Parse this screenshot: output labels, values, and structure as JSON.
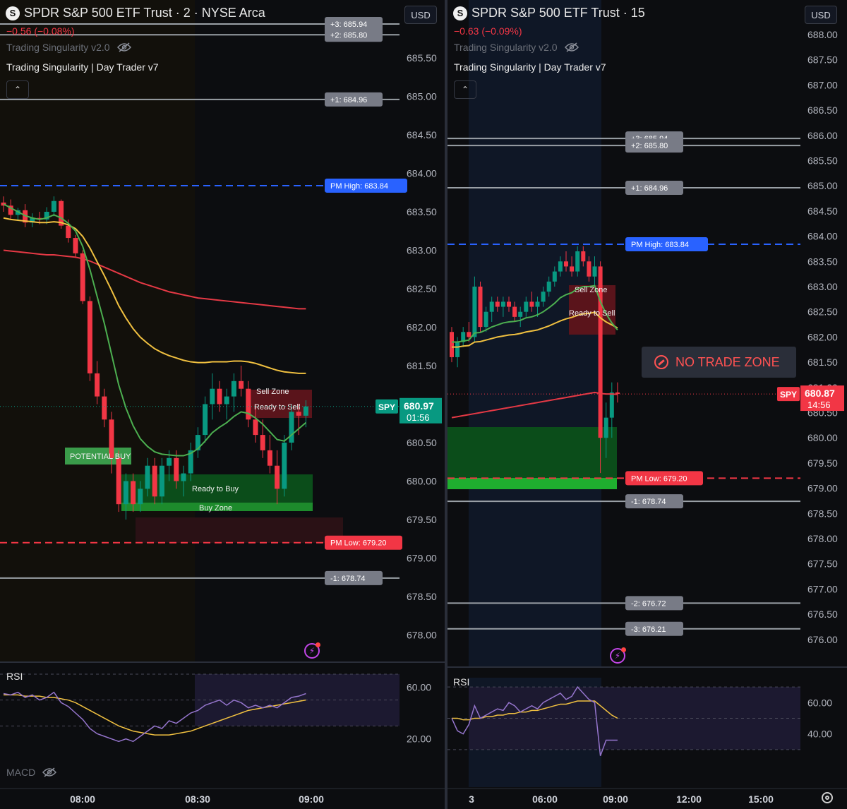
{
  "left": {
    "logo": "S",
    "title": "SPDR S&P 500 ETF Trust · 2 · NYSE Arca",
    "change": "−0.56 (−0.08%)",
    "indicator_hidden": "Trading Singularity v2.0",
    "indicator_active": "Trading Singularity | Day Trader v7",
    "currency": "USD",
    "rsi_label": "RSI",
    "macd_label": "MACD"
  },
  "right": {
    "logo": "S",
    "title": "SPDR S&P 500 ETF Trust · 15",
    "change": "−0.63 (−0.09%)",
    "indicator_hidden": "Trading Singularity v2.0",
    "indicator_active": "Trading Singularity | Day Trader v7",
    "currency": "USD",
    "rsi_label": "RSI",
    "no_trade_label": "NO TRADE ZONE"
  },
  "colors": {
    "up": "#089981",
    "down": "#f23645",
    "ema_fast": "#4caf50",
    "ema_mid": "#f0c040",
    "ema_slow": "#e53945",
    "pm_high": "#2962ff",
    "pm_low": "#f23645",
    "rsi": "#9575cd",
    "rsi_ma": "#f0c040"
  },
  "chart_data": [
    {
      "type": "candlestick",
      "symbol": "SPY",
      "interval": "2",
      "last_price": "680.97",
      "countdown": "01:56",
      "y_ticks": [
        "685.50",
        "685.00",
        "684.50",
        "684.00",
        "683.50",
        "683.00",
        "682.50",
        "682.00",
        "681.50",
        "681.00",
        "680.50",
        "680.00",
        "679.50",
        "679.00",
        "678.50",
        "678.00"
      ],
      "x_ticks": [
        "08:00",
        "08:30",
        "09:00"
      ],
      "levels": [
        {
          "label": "+3: 685.94",
          "value": 685.94
        },
        {
          "label": "+2: 685.80",
          "value": 685.8
        },
        {
          "label": "+1: 684.96",
          "value": 684.96
        },
        {
          "label": "PM High: 683.84",
          "value": 683.84
        },
        {
          "label": "PM Low: 679.20",
          "value": 679.2
        },
        {
          "label": "-1: 678.74",
          "value": 678.74
        }
      ],
      "zone_labels": [
        "Sell Zone",
        "Ready to Sell",
        "Ready to Buy",
        "Buy Zone",
        "POTENTIAL BUY"
      ],
      "candles": [
        [
          683.62,
          683.7,
          683.5,
          683.58
        ],
        [
          683.58,
          683.66,
          683.4,
          683.46
        ],
        [
          683.46,
          683.55,
          683.38,
          683.52
        ],
        [
          683.52,
          683.6,
          683.3,
          683.36
        ],
        [
          683.36,
          683.48,
          683.3,
          683.42
        ],
        [
          683.42,
          683.5,
          683.34,
          683.4
        ],
        [
          683.4,
          683.56,
          683.34,
          683.5
        ],
        [
          683.5,
          683.7,
          683.44,
          683.64
        ],
        [
          683.64,
          683.66,
          683.28,
          683.32
        ],
        [
          683.32,
          683.4,
          683.1,
          683.16
        ],
        [
          683.16,
          683.2,
          682.9,
          682.96
        ],
        [
          682.96,
          683.0,
          682.3,
          682.34
        ],
        [
          682.34,
          682.4,
          681.3,
          681.4
        ],
        [
          681.4,
          681.56,
          681.0,
          681.1
        ],
        [
          681.1,
          681.2,
          680.7,
          680.8
        ],
        [
          680.8,
          680.9,
          680.1,
          680.3
        ],
        [
          680.3,
          680.4,
          679.6,
          679.7
        ],
        [
          679.7,
          680.1,
          679.5,
          680.0
        ],
        [
          680.0,
          680.1,
          679.6,
          679.7
        ],
        [
          679.7,
          680.0,
          679.6,
          679.9
        ],
        [
          679.9,
          680.3,
          679.8,
          680.2
        ],
        [
          680.2,
          680.3,
          679.7,
          679.8
        ],
        [
          679.8,
          680.3,
          679.7,
          680.2
        ],
        [
          680.2,
          680.4,
          680.0,
          680.3
        ],
        [
          680.3,
          680.4,
          679.9,
          680.0
        ],
        [
          680.0,
          680.2,
          679.8,
          680.1
        ],
        [
          680.1,
          680.5,
          680.0,
          680.4
        ],
        [
          680.4,
          680.7,
          680.3,
          680.6
        ],
        [
          680.6,
          681.1,
          680.5,
          681.0
        ],
        [
          681.0,
          681.4,
          680.8,
          681.2
        ],
        [
          681.2,
          681.3,
          680.9,
          681.0
        ],
        [
          681.0,
          681.2,
          680.8,
          681.1
        ],
        [
          681.1,
          681.4,
          680.9,
          681.3
        ],
        [
          681.3,
          681.5,
          681.1,
          681.2
        ],
        [
          681.2,
          681.3,
          680.7,
          680.8
        ],
        [
          680.8,
          681.0,
          680.5,
          680.6
        ],
        [
          680.6,
          680.8,
          680.3,
          680.4
        ],
        [
          680.4,
          680.6,
          680.1,
          680.2
        ],
        [
          680.2,
          680.4,
          679.7,
          679.9
        ],
        [
          679.9,
          680.6,
          679.8,
          680.5
        ],
        [
          680.5,
          681.0,
          680.4,
          680.9
        ],
        [
          680.9,
          681.0,
          680.6,
          680.85
        ],
        [
          680.85,
          681.05,
          680.7,
          680.97
        ]
      ],
      "ema_fast": [
        683.6,
        683.55,
        683.5,
        683.45,
        683.42,
        683.4,
        683.42,
        683.46,
        683.42,
        683.35,
        683.25,
        683.05,
        682.75,
        682.4,
        682.05,
        681.65,
        681.25,
        680.95,
        680.72,
        680.55,
        680.45,
        680.38,
        680.35,
        680.34,
        680.33,
        680.33,
        680.36,
        680.42,
        680.52,
        680.63,
        680.7,
        680.76,
        680.84,
        680.9,
        680.88,
        680.82,
        680.74,
        680.64,
        680.54,
        680.52,
        680.6,
        680.68,
        680.76
      ],
      "ema_mid": [
        683.42,
        683.4,
        683.39,
        683.38,
        683.37,
        683.36,
        683.36,
        683.37,
        683.36,
        683.33,
        683.28,
        683.18,
        683.03,
        682.85,
        682.67,
        682.48,
        682.28,
        682.12,
        681.98,
        681.87,
        681.79,
        681.72,
        681.67,
        681.63,
        681.6,
        681.57,
        681.55,
        681.54,
        681.54,
        681.55,
        681.55,
        681.55,
        681.56,
        681.56,
        681.55,
        681.53,
        681.5,
        681.47,
        681.44,
        681.42,
        681.41,
        681.4,
        681.4
      ],
      "ema_slow": [
        683.0,
        682.99,
        682.98,
        682.97,
        682.96,
        682.95,
        682.94,
        682.94,
        682.93,
        682.92,
        682.91,
        682.89,
        682.86,
        682.82,
        682.78,
        682.74,
        682.7,
        682.66,
        682.62,
        682.58,
        682.55,
        682.52,
        682.49,
        682.46,
        682.44,
        682.42,
        682.4,
        682.38,
        682.37,
        682.36,
        682.35,
        682.34,
        682.33,
        682.32,
        682.31,
        682.3,
        682.29,
        682.28,
        682.27,
        682.26,
        682.25,
        682.24,
        682.24
      ],
      "rsi_ticks": [
        "60.00",
        "20.00"
      ],
      "rsi": [
        55,
        54,
        56,
        52,
        54,
        50,
        52,
        56,
        48,
        45,
        40,
        35,
        28,
        24,
        22,
        20,
        18,
        20,
        18,
        22,
        26,
        30,
        28,
        34,
        32,
        36,
        40,
        42,
        46,
        48,
        50,
        46,
        50,
        48,
        44,
        46,
        44,
        46,
        44,
        48,
        52,
        53,
        55
      ],
      "rsi_ma": [
        54,
        54,
        54,
        53,
        53,
        53,
        52,
        52,
        51,
        50,
        48,
        45,
        42,
        39,
        36,
        33,
        30,
        28,
        26,
        25,
        24,
        23,
        23,
        23,
        24,
        25,
        26,
        28,
        30,
        32,
        34,
        36,
        38,
        40,
        42,
        43,
        44,
        45,
        46,
        47,
        48,
        49,
        50
      ]
    },
    {
      "type": "candlestick",
      "symbol": "SPY",
      "interval": "15",
      "last_price": "680.87",
      "countdown": "14:56",
      "y_ticks": [
        "688.00",
        "687.50",
        "687.00",
        "686.50",
        "686.00",
        "685.50",
        "685.00",
        "684.50",
        "684.00",
        "683.50",
        "683.00",
        "682.50",
        "682.00",
        "681.50",
        "681.00",
        "680.50",
        "680.00",
        "679.50",
        "679.00",
        "678.50",
        "678.00",
        "677.50",
        "677.00",
        "676.50",
        "676.00"
      ],
      "x_ticks": [
        "3",
        "06:00",
        "09:00",
        "12:00",
        "15:00"
      ],
      "levels": [
        {
          "label": "+3: 685.94",
          "value": 685.94
        },
        {
          "label": "+2: 685.80",
          "value": 685.8
        },
        {
          "label": "+1: 684.96",
          "value": 684.96
        },
        {
          "label": "PM High: 683.84",
          "value": 683.84
        },
        {
          "label": "PM Low: 679.20",
          "value": 679.2
        },
        {
          "label": "-1: 678.74",
          "value": 678.74
        },
        {
          "label": "-2: 676.72",
          "value": 676.72
        },
        {
          "label": "-3: 676.21",
          "value": 676.21
        }
      ],
      "zone_labels": [
        "Sell Zone",
        "Ready to Sell"
      ],
      "candles": [
        [
          682.1,
          682.2,
          681.5,
          681.6
        ],
        [
          681.6,
          682.0,
          681.4,
          681.9
        ],
        [
          681.9,
          682.2,
          681.8,
          682.1
        ],
        [
          682.1,
          682.3,
          681.9,
          682.0
        ],
        [
          682.0,
          683.2,
          681.9,
          683.0
        ],
        [
          683.0,
          683.1,
          682.1,
          682.2
        ],
        [
          682.2,
          682.6,
          682.1,
          682.5
        ],
        [
          682.5,
          682.8,
          682.3,
          682.7
        ],
        [
          682.7,
          682.8,
          682.5,
          682.6
        ],
        [
          682.6,
          682.8,
          682.4,
          682.7
        ],
        [
          682.7,
          682.8,
          682.5,
          682.6
        ],
        [
          682.6,
          682.7,
          682.3,
          682.4
        ],
        [
          682.4,
          682.6,
          682.2,
          682.5
        ],
        [
          682.5,
          682.8,
          682.4,
          682.7
        ],
        [
          682.7,
          682.9,
          682.5,
          682.6
        ],
        [
          682.6,
          682.8,
          682.4,
          682.7
        ],
        [
          682.7,
          683.0,
          682.6,
          682.9
        ],
        [
          682.9,
          683.2,
          682.8,
          683.1
        ],
        [
          683.1,
          683.4,
          683.0,
          683.3
        ],
        [
          683.3,
          683.6,
          683.2,
          683.5
        ],
        [
          683.5,
          683.7,
          683.3,
          683.4
        ],
        [
          683.4,
          683.6,
          683.2,
          683.3
        ],
        [
          683.3,
          683.8,
          683.2,
          683.7
        ],
        [
          683.7,
          683.8,
          683.4,
          683.5
        ],
        [
          683.5,
          683.6,
          683.1,
          683.2
        ],
        [
          683.2,
          683.6,
          683.0,
          683.4
        ],
        [
          683.4,
          683.5,
          679.3,
          680.0
        ],
        [
          680.0,
          680.7,
          679.6,
          680.4
        ],
        [
          680.4,
          681.1,
          680.0,
          680.9
        ],
        [
          680.9,
          681.1,
          680.7,
          680.87
        ]
      ],
      "ema_fast": [
        681.9,
        681.9,
        681.92,
        681.94,
        682.08,
        682.09,
        682.14,
        682.2,
        682.24,
        682.28,
        682.3,
        682.31,
        682.33,
        682.38,
        682.4,
        682.44,
        682.5,
        682.58,
        682.67,
        682.78,
        682.84,
        682.88,
        682.96,
        683.0,
        683.0,
        683.02,
        682.7,
        682.46,
        682.28,
        682.14
      ],
      "ema_mid": [
        681.8,
        681.8,
        681.82,
        681.83,
        681.9,
        681.91,
        681.94,
        681.97,
        682.0,
        682.02,
        682.04,
        682.05,
        682.07,
        682.1,
        682.12,
        682.14,
        682.18,
        682.22,
        682.27,
        682.32,
        682.36,
        682.39,
        682.43,
        682.46,
        682.47,
        682.49,
        682.38,
        682.3,
        682.24,
        682.18
      ],
      "ema_slow": [
        680.4,
        680.42,
        680.44,
        680.46,
        680.48,
        680.5,
        680.52,
        680.54,
        680.56,
        680.58,
        680.6,
        680.62,
        680.64,
        680.66,
        680.68,
        680.7,
        680.72,
        680.74,
        680.76,
        680.78,
        680.8,
        680.82,
        680.84,
        680.86,
        680.88,
        680.9,
        680.88,
        680.87,
        680.87,
        680.86
      ],
      "rsi_ticks": [
        "60.00",
        "40.00"
      ],
      "rsi": [
        50,
        42,
        40,
        46,
        58,
        50,
        52,
        54,
        56,
        55,
        60,
        58,
        54,
        56,
        58,
        56,
        60,
        62,
        64,
        66,
        62,
        64,
        70,
        66,
        62,
        60,
        26,
        36,
        36,
        36
      ],
      "rsi_ma": [
        50,
        50,
        49,
        49,
        50,
        50,
        51,
        51,
        52,
        52,
        53,
        53,
        54,
        54,
        55,
        55,
        56,
        57,
        58,
        59,
        59,
        60,
        61,
        61,
        61,
        61,
        58,
        55,
        52,
        50
      ]
    }
  ]
}
